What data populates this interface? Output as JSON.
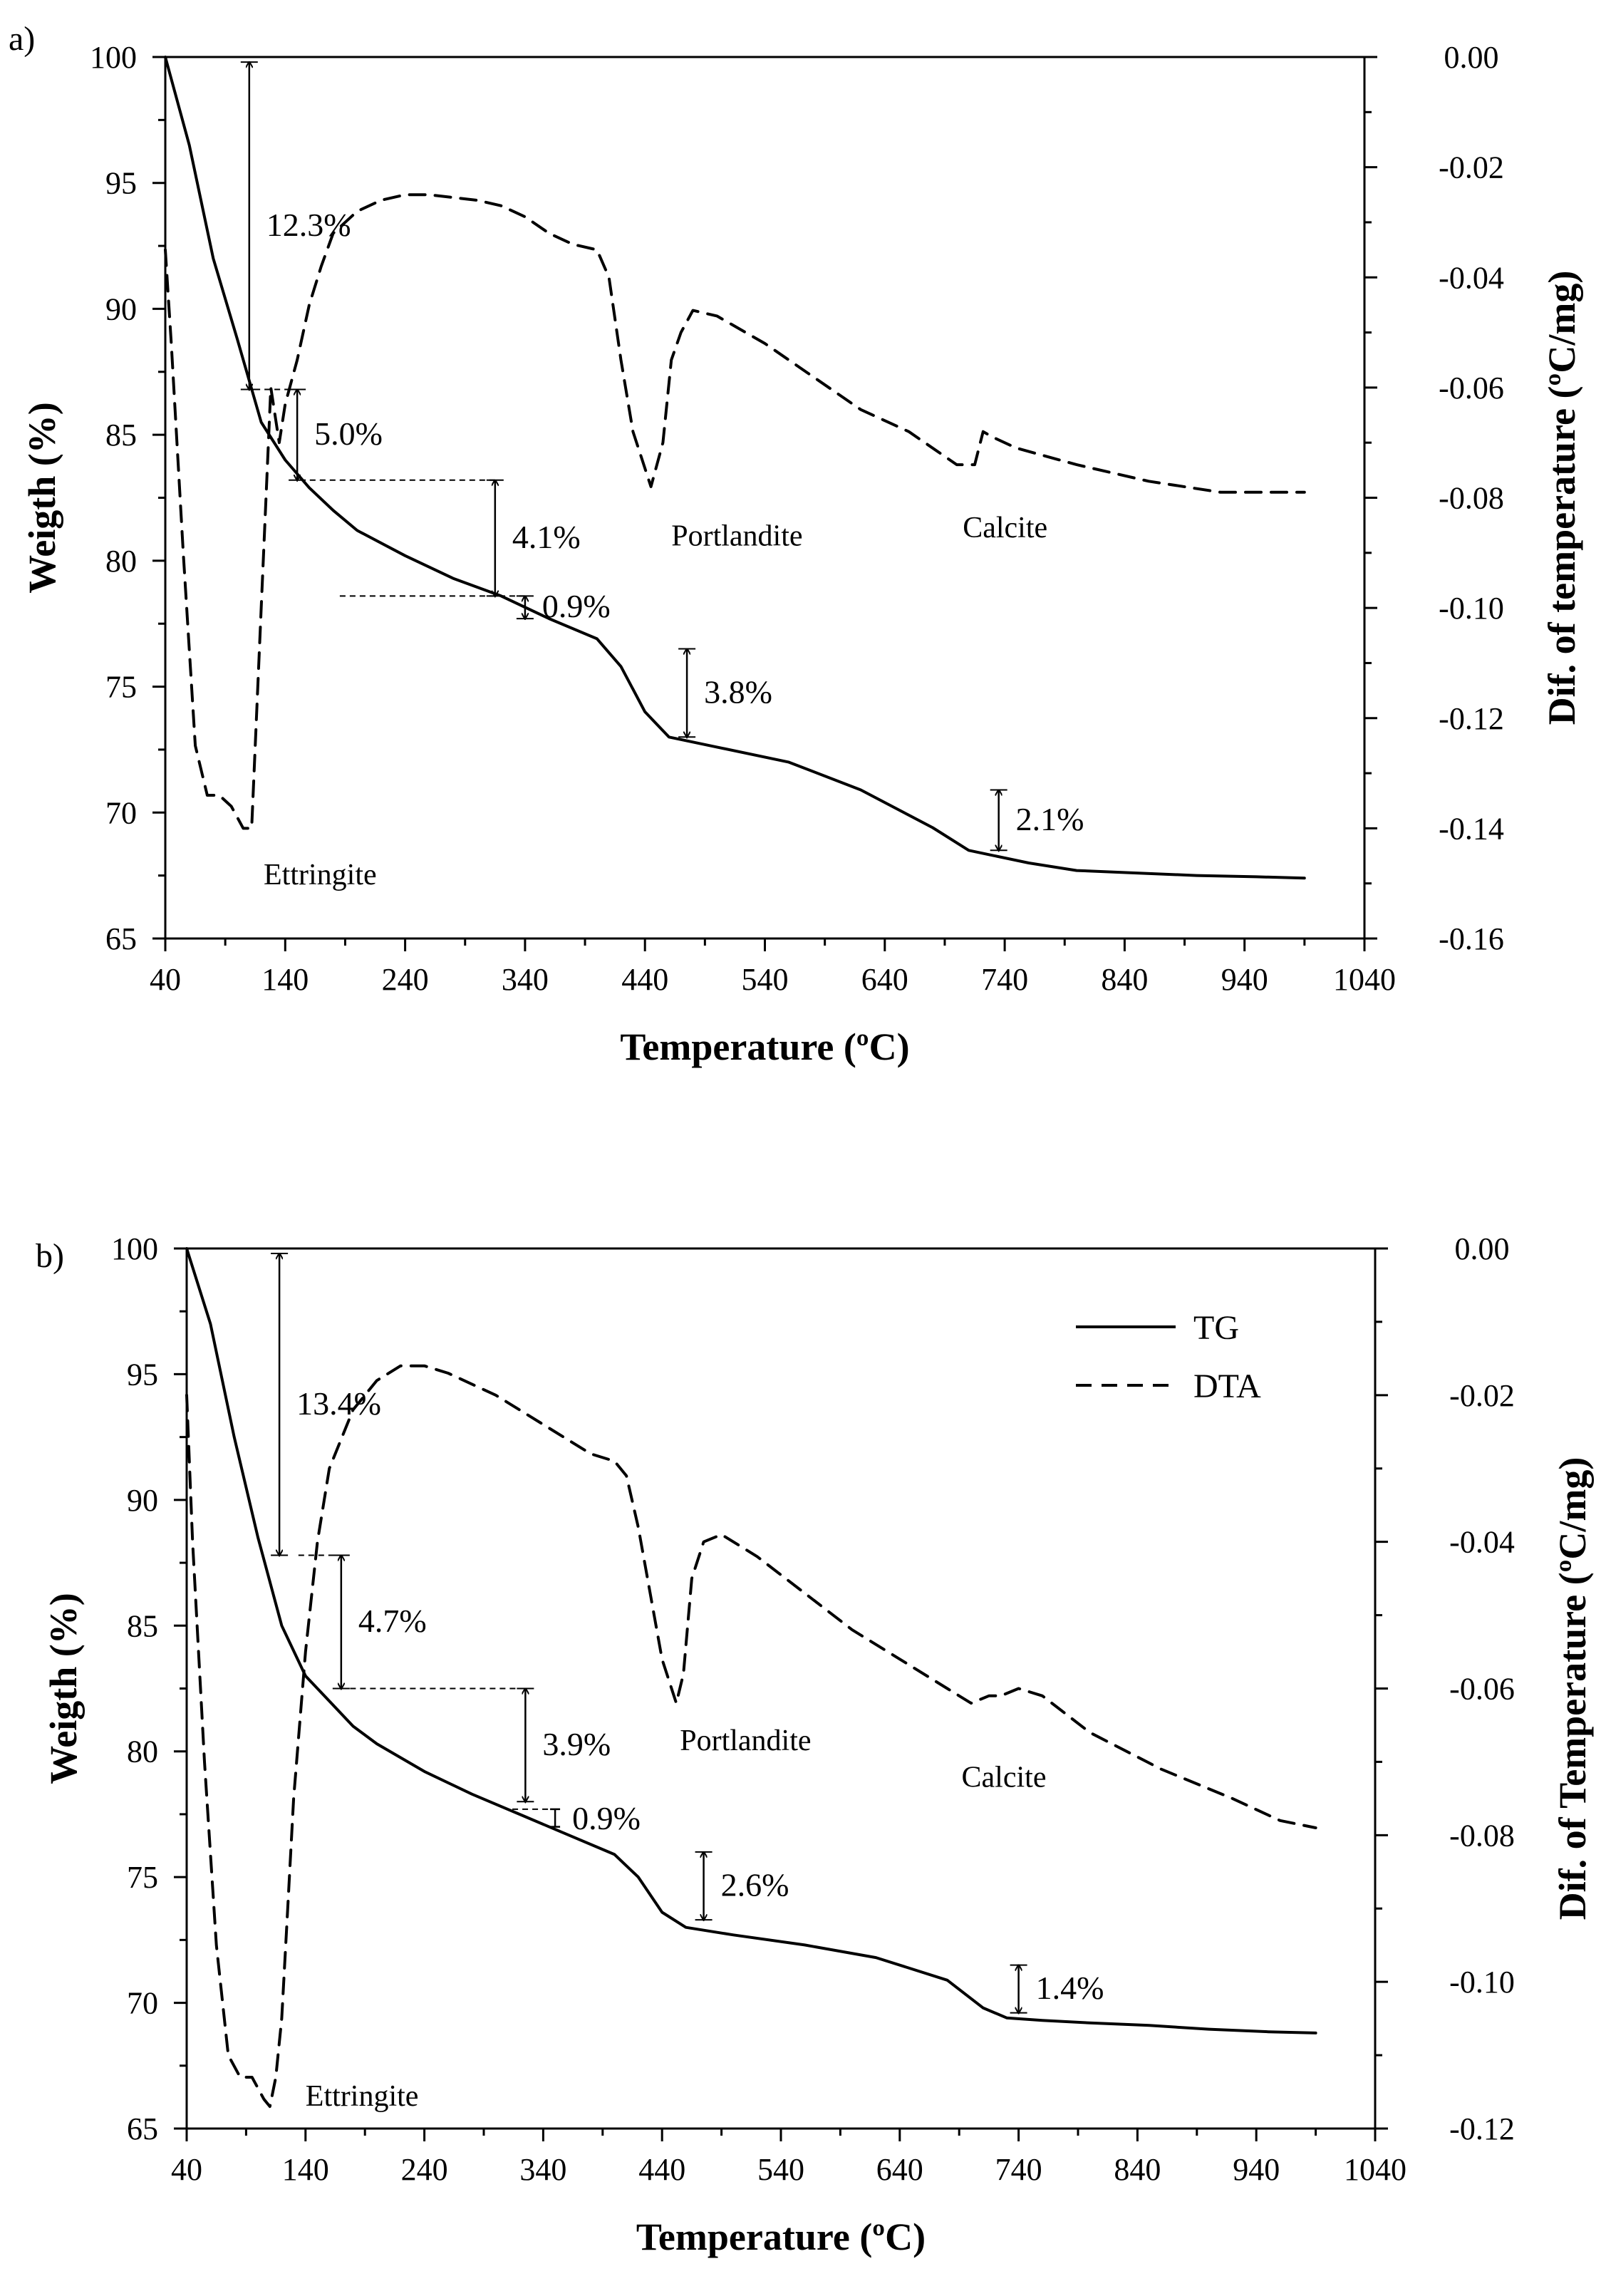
{
  "chart_data": [
    {
      "type": "line",
      "panel_label": "a)",
      "xlabel": "Temperature (ºC)",
      "ylabel": "Weigth (%)",
      "y2label": "Dif. of temperature (ºC/mg)",
      "xlim": [
        40,
        1040
      ],
      "ylim": [
        65,
        100
      ],
      "y2lim": [
        -0.16,
        0.0
      ],
      "xticks": [
        40,
        140,
        240,
        340,
        440,
        540,
        640,
        740,
        840,
        940,
        1040
      ],
      "yticks": [
        65,
        70,
        75,
        80,
        85,
        90,
        95,
        100
      ],
      "y2ticks": [
        "0.00",
        "-0.02",
        "-0.04",
        "-0.06",
        "-0.08",
        "-0.10",
        "-0.12",
        "-0.14",
        "-0.16"
      ],
      "series": [
        {
          "name": "TG",
          "axis": "left",
          "style": "solid",
          "x": [
            40,
            60,
            80,
            100,
            120,
            140,
            160,
            180,
            200,
            240,
            280,
            320,
            360,
            400,
            420,
            440,
            460,
            500,
            560,
            620,
            680,
            710,
            730,
            760,
            800,
            850,
            900,
            950,
            990
          ],
          "y": [
            100,
            96.5,
            92.0,
            88.8,
            85.5,
            84.0,
            82.9,
            82.0,
            81.2,
            80.2,
            79.3,
            78.6,
            77.7,
            76.9,
            75.8,
            74.0,
            73.0,
            72.6,
            72.0,
            70.9,
            69.4,
            68.5,
            68.3,
            68.0,
            67.7,
            67.6,
            67.5,
            67.45,
            67.4
          ]
        },
        {
          "name": "DTA",
          "axis": "right",
          "style": "dashed",
          "x": [
            40,
            45,
            55,
            65,
            75,
            85,
            95,
            105,
            112,
            120,
            128,
            135,
            140,
            150,
            160,
            170,
            180,
            200,
            220,
            240,
            260,
            300,
            320,
            340,
            360,
            380,
            400,
            410,
            420,
            430,
            445,
            455,
            462,
            470,
            480,
            500,
            540,
            580,
            620,
            660,
            700,
            715,
            722,
            730,
            750,
            800,
            860,
            920,
            960,
            990
          ],
          "y": [
            -0.035,
            -0.052,
            -0.09,
            -0.125,
            -0.134,
            -0.134,
            -0.136,
            -0.14,
            -0.14,
            -0.1,
            -0.06,
            -0.07,
            -0.063,
            -0.055,
            -0.045,
            -0.038,
            -0.032,
            -0.028,
            -0.026,
            -0.025,
            -0.025,
            -0.026,
            -0.027,
            -0.029,
            -0.032,
            -0.034,
            -0.035,
            -0.04,
            -0.055,
            -0.068,
            -0.078,
            -0.07,
            -0.055,
            -0.05,
            -0.046,
            -0.047,
            -0.052,
            -0.058,
            -0.064,
            -0.068,
            -0.074,
            -0.074,
            -0.068,
            -0.069,
            -0.071,
            -0.074,
            -0.077,
            -0.079,
            -0.079,
            -0.079
          ]
        }
      ],
      "annotations": [
        {
          "text": "12.3%",
          "x": 110,
          "y_from": 99.8,
          "y_to": 86.8
        },
        {
          "text": "5.0%",
          "x": 150,
          "y_from": 86.8,
          "y_to": 83.2
        },
        {
          "text": "4.1%",
          "x": 315,
          "y_from": 83.2,
          "y_to": 78.6
        },
        {
          "text": "0.9%",
          "x": 340,
          "y_from": 78.6,
          "y_to": 77.7
        },
        {
          "text": "3.8%",
          "x": 475,
          "y_from": 76.5,
          "y_to": 73.0
        },
        {
          "text": "2.1%",
          "x": 735,
          "y_from": 70.9,
          "y_to": 68.5
        }
      ],
      "labels": [
        {
          "text": "Ettringite",
          "x": 122,
          "y": -0.145
        },
        {
          "text": "Portlandite",
          "x": 462,
          "y": -0.0835
        },
        {
          "text": "Calcite",
          "x": 705,
          "y": -0.082
        }
      ]
    },
    {
      "type": "line",
      "panel_label": "b)",
      "xlabel": "Temperature (ºC)",
      "ylabel": "Weigth (%)",
      "y2label": "Dif. of Temperature (ºC/mg)",
      "xlim": [
        40,
        1040
      ],
      "ylim": [
        65,
        100
      ],
      "y2lim": [
        -0.12,
        0.0
      ],
      "xticks": [
        40,
        140,
        240,
        340,
        440,
        540,
        640,
        740,
        840,
        940,
        1040
      ],
      "yticks": [
        65,
        70,
        75,
        80,
        85,
        90,
        95,
        100
      ],
      "y2ticks": [
        "0.00",
        "-0.02",
        "-0.04",
        "-0.06",
        "-0.08",
        "-0.10",
        "-0.12"
      ],
      "legend": {
        "position": "top-right",
        "entries": [
          "TG",
          "DTA"
        ]
      },
      "series": [
        {
          "name": "TG",
          "axis": "left",
          "style": "solid",
          "x": [
            40,
            60,
            80,
            100,
            120,
            140,
            160,
            180,
            200,
            240,
            280,
            320,
            360,
            400,
            420,
            440,
            460,
            500,
            560,
            620,
            680,
            710,
            730,
            760,
            800,
            850,
            900,
            950,
            990
          ],
          "y": [
            100,
            97.0,
            92.5,
            88.5,
            85.0,
            83.0,
            82.0,
            81.0,
            80.3,
            79.2,
            78.3,
            77.5,
            76.7,
            75.9,
            75.0,
            73.6,
            73.0,
            72.7,
            72.3,
            71.8,
            70.9,
            69.8,
            69.4,
            69.3,
            69.2,
            69.1,
            68.95,
            68.85,
            68.8
          ]
        },
        {
          "name": "DTA",
          "axis": "right",
          "style": "dashed",
          "x": [
            40,
            45,
            55,
            65,
            75,
            85,
            95,
            105,
            110,
            115,
            120,
            125,
            130,
            140,
            150,
            160,
            180,
            200,
            220,
            240,
            260,
            300,
            340,
            380,
            400,
            410,
            420,
            430,
            440,
            452,
            458,
            465,
            475,
            490,
            520,
            560,
            600,
            640,
            680,
            700,
            715,
            725,
            740,
            760,
            800,
            860,
            920,
            960,
            990
          ],
          "y": [
            -0.02,
            -0.04,
            -0.07,
            -0.095,
            -0.11,
            -0.113,
            -0.113,
            -0.116,
            -0.117,
            -0.113,
            -0.105,
            -0.09,
            -0.075,
            -0.055,
            -0.04,
            -0.03,
            -0.022,
            -0.018,
            -0.016,
            -0.016,
            -0.017,
            -0.02,
            -0.024,
            -0.028,
            -0.029,
            -0.031,
            -0.038,
            -0.047,
            -0.056,
            -0.062,
            -0.058,
            -0.045,
            -0.04,
            -0.039,
            -0.042,
            -0.047,
            -0.052,
            -0.056,
            -0.06,
            -0.062,
            -0.061,
            -0.061,
            -0.06,
            -0.061,
            -0.066,
            -0.071,
            -0.075,
            -0.078,
            -0.079
          ]
        }
      ],
      "annotations": [
        {
          "text": "13.4%",
          "x": 118,
          "y_from": 99.8,
          "y_to": 87.8
        },
        {
          "text": "4.7%",
          "x": 170,
          "y_from": 87.8,
          "y_to": 82.5
        },
        {
          "text": "3.9%",
          "x": 325,
          "y_from": 82.5,
          "y_to": 78.0
        },
        {
          "text": "0.9%",
          "x": 350,
          "y_from": 77.7,
          "y_to": 77.0
        },
        {
          "text": "2.6%",
          "x": 475,
          "y_from": 76.0,
          "y_to": 73.3
        },
        {
          "text": "1.4%",
          "x": 740,
          "y_from": 71.5,
          "y_to": 69.6
        }
      ],
      "labels": [
        {
          "text": "Ettringite",
          "x": 140,
          "y": -0.113
        },
        {
          "text": "Portlandite",
          "x": 455,
          "y": -0.0645
        },
        {
          "text": "Calcite",
          "x": 692,
          "y": -0.0695
        }
      ]
    }
  ]
}
